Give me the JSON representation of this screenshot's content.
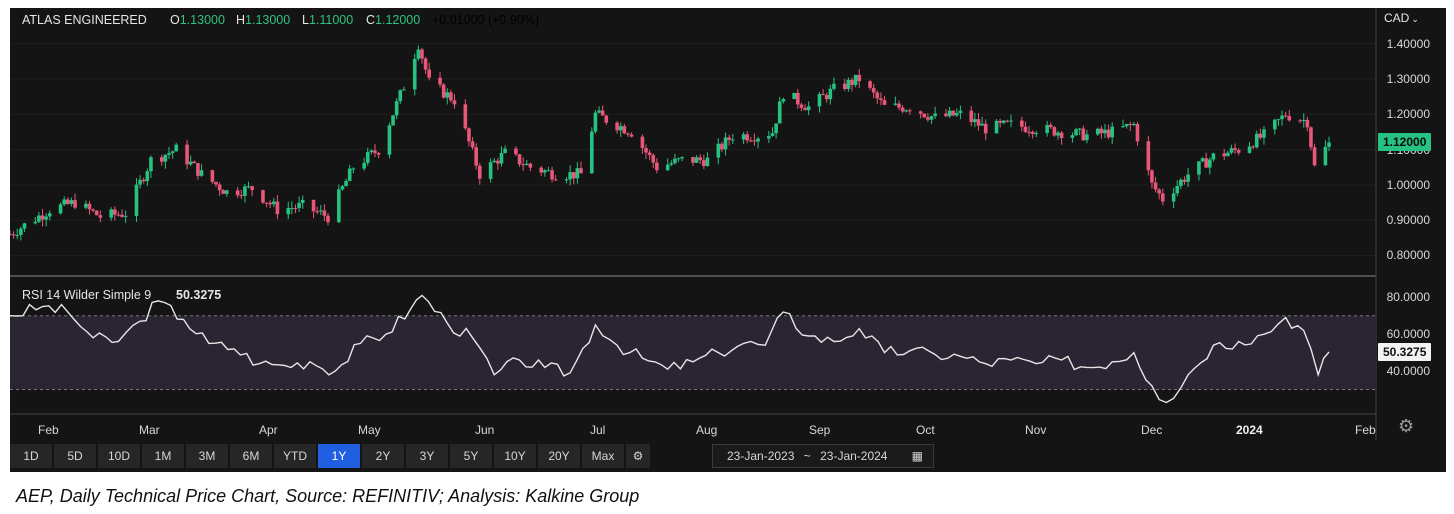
{
  "header": {
    "instrument": "ATLAS ENGINEERED",
    "open_label": "O",
    "open": "1.13000",
    "high_label": "H",
    "high": "1.13000",
    "low_label": "L",
    "low": "1.11000",
    "close_label": "C",
    "close": "1.12000",
    "change": "+0.01000 (+0.90%)"
  },
  "currency_selector": "CAD",
  "last_price_tag": "1.12000",
  "rsi_panel": {
    "label": "RSI 14 Wilder Simple 9",
    "value": "50.3275",
    "value_tag": "50.3275"
  },
  "x_axis_labels": [
    "Feb",
    "Mar",
    "Apr",
    "May",
    "Jun",
    "Jul",
    "Aug",
    "Sep",
    "Oct",
    "Nov",
    "Dec",
    "2024",
    "Feb"
  ],
  "range_buttons": [
    "1D",
    "5D",
    "10D",
    "1M",
    "3M",
    "6M",
    "YTD",
    "1Y",
    "2Y",
    "3Y",
    "5Y",
    "10Y",
    "20Y",
    "Max"
  ],
  "active_range": "1Y",
  "date_range": {
    "from": "23-Jan-2023",
    "separator": "~",
    "to": "23-Jan-2024"
  },
  "caption": "AEP, Daily Technical Price Chart, Source: REFINITIV; Analysis: Kalkine Group",
  "colors": {
    "up": "#26c281",
    "down": "#e8577a",
    "background": "#141414",
    "rsi_line": "#e6e6e6",
    "rsi_band": "#2a2433"
  },
  "chart_data": [
    {
      "type": "candlestick",
      "title": "ATLAS ENGINEERED",
      "ylabel": "CAD",
      "ylim": [
        0.77,
        1.45
      ],
      "yticks": [
        "1.40000",
        "1.30000",
        "1.20000",
        "1.10000",
        "1.00000",
        "0.90000",
        "0.80000"
      ],
      "x_range": [
        "2023-01-23",
        "2024-02-05"
      ],
      "anchors": [
        [
          "2023-01-23",
          0.86
        ],
        [
          "2023-02-03",
          0.93
        ],
        [
          "2023-02-10",
          0.95
        ],
        [
          "2023-02-17",
          0.91
        ],
        [
          "2023-02-24",
          0.92
        ],
        [
          "2023-03-03",
          1.07
        ],
        [
          "2023-03-10",
          1.1
        ],
        [
          "2023-03-17",
          1.03
        ],
        [
          "2023-03-24",
          0.98
        ],
        [
          "2023-03-31",
          0.99
        ],
        [
          "2023-04-07",
          0.93
        ],
        [
          "2023-04-14",
          0.94
        ],
        [
          "2023-04-21",
          0.91
        ],
        [
          "2023-04-28",
          1.05
        ],
        [
          "2023-05-05",
          1.1
        ],
        [
          "2023-05-12",
          1.28
        ],
        [
          "2023-05-16",
          1.4
        ],
        [
          "2023-05-19",
          1.29
        ],
        [
          "2023-05-26",
          1.24
        ],
        [
          "2023-06-02",
          1.03
        ],
        [
          "2023-06-09",
          1.09
        ],
        [
          "2023-06-16",
          1.05
        ],
        [
          "2023-06-23",
          1.03
        ],
        [
          "2023-06-30",
          1.03
        ],
        [
          "2023-07-04",
          1.2
        ],
        [
          "2023-07-14",
          1.15
        ],
        [
          "2023-07-21",
          1.05
        ],
        [
          "2023-07-28",
          1.07
        ],
        [
          "2023-08-04",
          1.07
        ],
        [
          "2023-08-11",
          1.14
        ],
        [
          "2023-08-18",
          1.14
        ],
        [
          "2023-08-22",
          1.15
        ],
        [
          "2023-08-25",
          1.26
        ],
        [
          "2023-09-01",
          1.22
        ],
        [
          "2023-09-08",
          1.27
        ],
        [
          "2023-09-15",
          1.3
        ],
        [
          "2023-09-22",
          1.22
        ],
        [
          "2023-09-29",
          1.22
        ],
        [
          "2023-10-06",
          1.19
        ],
        [
          "2023-10-13",
          1.2
        ],
        [
          "2023-10-20",
          1.16
        ],
        [
          "2023-10-27",
          1.17
        ],
        [
          "2023-11-03",
          1.16
        ],
        [
          "2023-11-10",
          1.15
        ],
        [
          "2023-11-17",
          1.14
        ],
        [
          "2023-11-24",
          1.15
        ],
        [
          "2023-11-30",
          1.17
        ],
        [
          "2023-12-05",
          1.0
        ],
        [
          "2023-12-08",
          0.96
        ],
        [
          "2023-12-15",
          1.03
        ],
        [
          "2023-12-22",
          1.08
        ],
        [
          "2023-12-29",
          1.1
        ],
        [
          "2024-01-05",
          1.14
        ],
        [
          "2024-01-11",
          1.2
        ],
        [
          "2024-01-17",
          1.18
        ],
        [
          "2024-01-19",
          1.05
        ],
        [
          "2024-01-23",
          1.12
        ]
      ],
      "last_close": 1.12
    },
    {
      "type": "line",
      "title": "RSI 14 Wilder Simple 9",
      "ylim": [
        20,
        85
      ],
      "yticks": [
        "80.0000",
        "60.0000",
        "40.0000"
      ],
      "bands": [
        30,
        70
      ],
      "x_range": [
        "2023-01-23",
        "2024-02-05"
      ],
      "points": [
        [
          "2023-01-23",
          70
        ],
        [
          "2023-02-01",
          75
        ],
        [
          "2023-02-08",
          72
        ],
        [
          "2023-02-15",
          58
        ],
        [
          "2023-02-22",
          56
        ],
        [
          "2023-02-28",
          67
        ],
        [
          "2023-03-05",
          78
        ],
        [
          "2023-03-12",
          68
        ],
        [
          "2023-03-19",
          55
        ],
        [
          "2023-03-26",
          52
        ],
        [
          "2023-04-02",
          44
        ],
        [
          "2023-04-09",
          43
        ],
        [
          "2023-04-16",
          45
        ],
        [
          "2023-04-23",
          40
        ],
        [
          "2023-04-30",
          55
        ],
        [
          "2023-05-07",
          60
        ],
        [
          "2023-05-14",
          74
        ],
        [
          "2023-05-17",
          81
        ],
        [
          "2023-05-24",
          66
        ],
        [
          "2023-05-31",
          58
        ],
        [
          "2023-06-06",
          38
        ],
        [
          "2023-06-13",
          46
        ],
        [
          "2023-06-20",
          42
        ],
        [
          "2023-06-27",
          39
        ],
        [
          "2023-07-04",
          65
        ],
        [
          "2023-07-10",
          54
        ],
        [
          "2023-07-17",
          47
        ],
        [
          "2023-07-24",
          41
        ],
        [
          "2023-07-31",
          45
        ],
        [
          "2023-08-07",
          50
        ],
        [
          "2023-08-14",
          55
        ],
        [
          "2023-08-20",
          54
        ],
        [
          "2023-08-25",
          72
        ],
        [
          "2023-09-01",
          59
        ],
        [
          "2023-09-08",
          56
        ],
        [
          "2023-09-15",
          63
        ],
        [
          "2023-09-22",
          50
        ],
        [
          "2023-09-29",
          51
        ],
        [
          "2023-10-06",
          49
        ],
        [
          "2023-10-13",
          48
        ],
        [
          "2023-10-20",
          44
        ],
        [
          "2023-10-27",
          46
        ],
        [
          "2023-11-03",
          44
        ],
        [
          "2023-11-10",
          46
        ],
        [
          "2023-11-17",
          42
        ],
        [
          "2023-11-24",
          45
        ],
        [
          "2023-11-30",
          50
        ],
        [
          "2023-12-05",
          32
        ],
        [
          "2023-12-09",
          23
        ],
        [
          "2023-12-15",
          38
        ],
        [
          "2023-12-22",
          54
        ],
        [
          "2023-12-29",
          56
        ],
        [
          "2024-01-05",
          60
        ],
        [
          "2024-01-11",
          69
        ],
        [
          "2024-01-16",
          62
        ],
        [
          "2024-01-20",
          38
        ],
        [
          "2024-01-23",
          50.3275
        ]
      ]
    }
  ]
}
